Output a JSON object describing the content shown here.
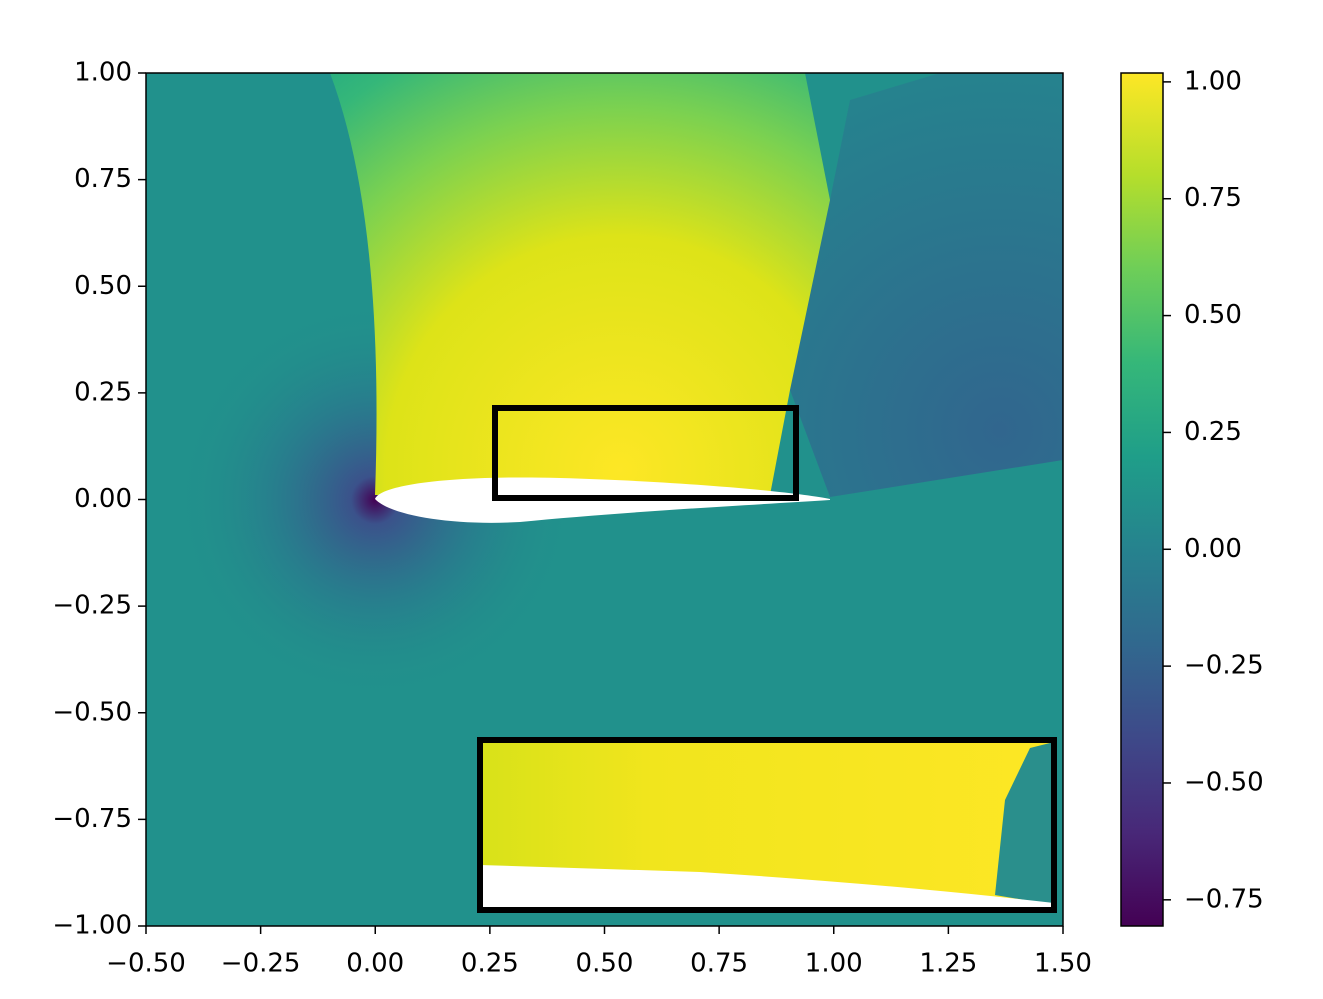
{
  "chart_data": {
    "type": "heatmap",
    "xlim": [
      -0.5,
      1.5
    ],
    "ylim": [
      -1,
      1
    ],
    "xticks": [
      {
        "value": -0.5,
        "label": "−0.50"
      },
      {
        "value": -0.25,
        "label": "−0.25"
      },
      {
        "value": 0,
        "label": "0.00"
      },
      {
        "value": 0.25,
        "label": "0.25"
      },
      {
        "value": 0.5,
        "label": "0.50"
      },
      {
        "value": 0.75,
        "label": "0.75"
      },
      {
        "value": 1,
        "label": "1.00"
      },
      {
        "value": 1.25,
        "label": "1.25"
      },
      {
        "value": 1.5,
        "label": "1.50"
      }
    ],
    "yticks": [
      {
        "value": -1,
        "label": "−1.00"
      },
      {
        "value": -0.75,
        "label": "−0.75"
      },
      {
        "value": -0.5,
        "label": "−0.50"
      },
      {
        "value": -0.25,
        "label": "−0.25"
      },
      {
        "value": 0,
        "label": "0.00"
      },
      {
        "value": 0.25,
        "label": "0.25"
      },
      {
        "value": 0.5,
        "label": "0.50"
      },
      {
        "value": 0.75,
        "label": "0.75"
      },
      {
        "value": 1,
        "label": "1.00"
      }
    ],
    "colorbar": {
      "lim": [
        -0.806,
        1.019
      ],
      "ticks": [
        {
          "value": -0.75,
          "label": "−0.75"
        },
        {
          "value": -0.5,
          "label": "−0.50"
        },
        {
          "value": -0.25,
          "label": "−0.25"
        },
        {
          "value": 0,
          "label": "0.00"
        },
        {
          "value": 0.25,
          "label": "0.25"
        },
        {
          "value": 0.5,
          "label": "0.50"
        },
        {
          "value": 0.75,
          "label": "0.75"
        },
        {
          "value": 1,
          "label": "1.00"
        }
      ]
    }
  }
}
